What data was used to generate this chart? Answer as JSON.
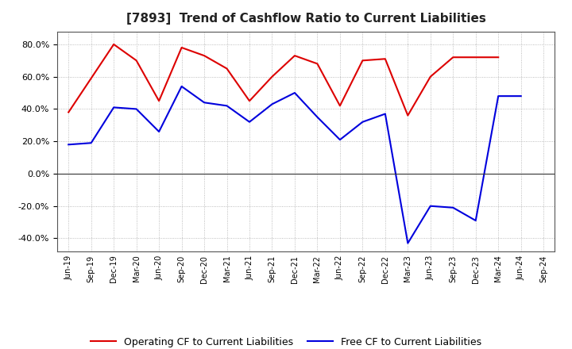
{
  "title": "[7893]  Trend of Cashflow Ratio to Current Liabilities",
  "x_labels": [
    "Jun-19",
    "Sep-19",
    "Dec-19",
    "Mar-20",
    "Jun-20",
    "Sep-20",
    "Dec-20",
    "Mar-21",
    "Jun-21",
    "Sep-21",
    "Dec-21",
    "Mar-22",
    "Jun-22",
    "Sep-22",
    "Dec-22",
    "Mar-23",
    "Jun-23",
    "Sep-23",
    "Dec-23",
    "Mar-24",
    "Jun-24",
    "Sep-24"
  ],
  "operating_cf": [
    0.38,
    null,
    0.8,
    0.7,
    0.45,
    0.78,
    0.73,
    0.65,
    0.45,
    0.6,
    0.73,
    0.68,
    0.42,
    0.7,
    0.71,
    0.36,
    0.6,
    0.72,
    0.72,
    0.72,
    null,
    null
  ],
  "free_cf": [
    0.18,
    0.19,
    0.41,
    0.4,
    0.26,
    0.54,
    0.44,
    0.42,
    0.32,
    0.43,
    0.5,
    0.35,
    0.21,
    0.32,
    0.37,
    -0.43,
    -0.2,
    -0.21,
    -0.29,
    0.48,
    0.48,
    null
  ],
  "operating_color": "#dd0000",
  "free_color": "#0000dd",
  "ylim": [
    -0.48,
    0.88
  ],
  "yticks": [
    -0.4,
    -0.2,
    0.0,
    0.2,
    0.4,
    0.6,
    0.8
  ],
  "legend_operating": "Operating CF to Current Liabilities",
  "legend_free": "Free CF to Current Liabilities",
  "background_color": "#ffffff",
  "grid_color": "#aaaaaa"
}
